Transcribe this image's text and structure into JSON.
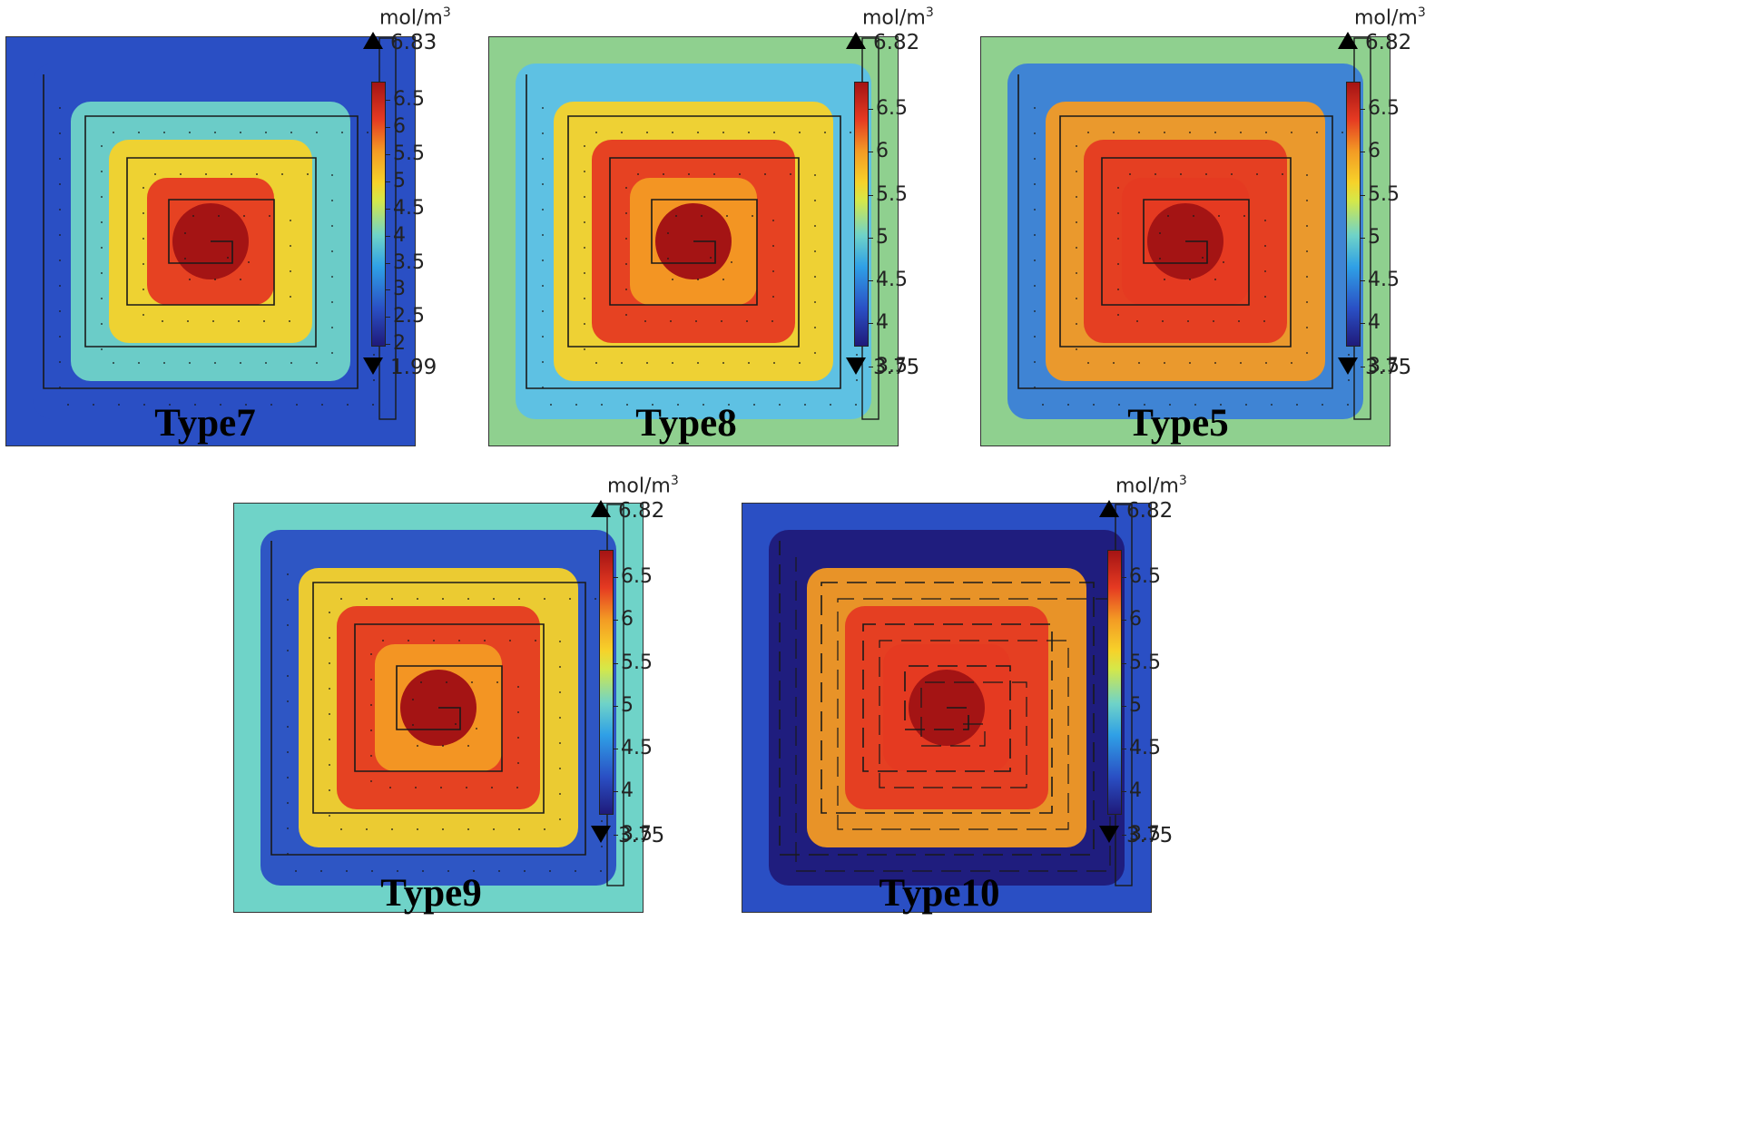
{
  "figure": {
    "colormap": [
      "#1f1a7a",
      "#2a4fc4",
      "#2fa0e6",
      "#6fd3c8",
      "#d4e84a",
      "#f6d22a",
      "#f39a24",
      "#e53a22",
      "#a41414"
    ]
  },
  "chart_data": [
    {
      "type": "heatmap",
      "title": "Type7",
      "unit": "mol/m",
      "unit_exp": "3",
      "max": "6.83",
      "min": "1.99",
      "ticks": [
        "6.5",
        "6",
        "5.5",
        "5",
        "4.5",
        "4",
        "3.5",
        "3",
        "2.5",
        "2"
      ],
      "range": [
        1.99,
        6.83
      ]
    },
    {
      "type": "heatmap",
      "title": "Type8",
      "unit": "mol/m",
      "unit_exp": "3",
      "max": "6.82",
      "min": "3.75",
      "ticks": [
        "6.5",
        "6",
        "5.5",
        "5",
        "4.5",
        "4",
        "3.5"
      ],
      "range": [
        3.75,
        6.82
      ]
    },
    {
      "type": "heatmap",
      "title": "Type5",
      "unit": "mol/m",
      "unit_exp": "3",
      "max": "6.82",
      "min": "3.75",
      "ticks": [
        "6.5",
        "6",
        "5.5",
        "5",
        "4.5",
        "4",
        "3.5"
      ],
      "range": [
        3.75,
        6.82
      ]
    },
    {
      "type": "heatmap",
      "title": "Type9",
      "unit": "mol/m",
      "unit_exp": "3",
      "max": "6.82",
      "min": "3.75",
      "ticks": [
        "6.5",
        "6",
        "5.5",
        "5",
        "4.5",
        "4",
        "3.5"
      ],
      "range": [
        3.75,
        6.82
      ]
    },
    {
      "type": "heatmap",
      "title": "Type10",
      "unit": "mol/m",
      "unit_exp": "3",
      "max": "6.82",
      "min": "3.75",
      "ticks": [
        "6.5",
        "6",
        "5.5",
        "5",
        "4.5",
        "4",
        "3.5"
      ],
      "range": [
        3.75,
        6.82
      ]
    }
  ]
}
